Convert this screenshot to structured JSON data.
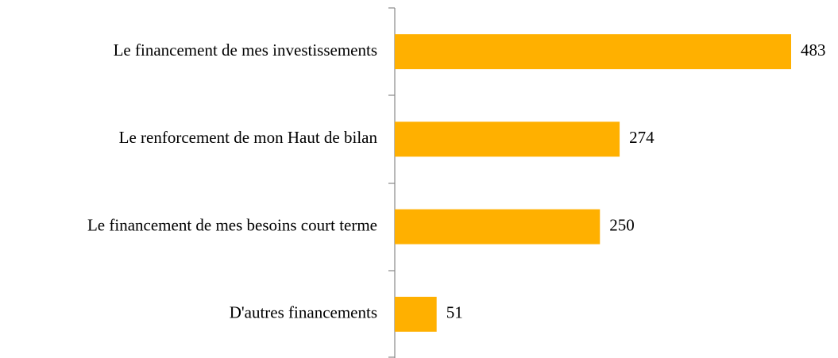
{
  "chart_data": {
    "type": "bar",
    "orientation": "horizontal",
    "categories": [
      "Le financement de mes investissements",
      "Le renforcement de mon Haut de bilan",
      "Le financement de mes besoins court terme",
      "D'autres financements"
    ],
    "values": [
      483,
      274,
      250,
      51
    ],
    "color": "#ffb000"
  }
}
